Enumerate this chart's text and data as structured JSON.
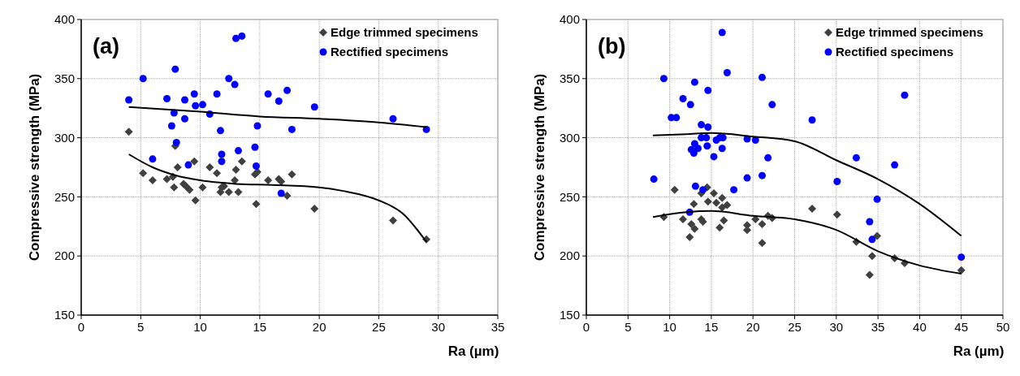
{
  "chart_data": [
    {
      "type": "scatter",
      "xlabel": "Ra (µm)",
      "ylabel": "Compressive strength (MPa)",
      "annotations": [
        "(a)"
      ],
      "xlim": [
        0,
        35
      ],
      "xticks": [
        0,
        5,
        10,
        15,
        20,
        25,
        30,
        35
      ],
      "ylim": [
        150,
        400
      ],
      "yticks": [
        150,
        200,
        250,
        300,
        350,
        400
      ],
      "grid": true,
      "legend": "top right",
      "series": [
        {
          "name": "Edge trimmed specimens",
          "color": "#404040",
          "marker": "diamond",
          "x": [
            4.0,
            5.2,
            6.0,
            7.2,
            7.7,
            7.8,
            7.9,
            8.1,
            8.6,
            8.8,
            9.1,
            9.6,
            9.5,
            10.2,
            10.8,
            11.4,
            12.0,
            11.8,
            11.7,
            12.4,
            13.0,
            12.9,
            13.2,
            13.5,
            14.6,
            14.8,
            14.7,
            15.7,
            16.6,
            16.8,
            17.3,
            17.7,
            19.6,
            26.2,
            29.0
          ],
          "values": [
            305,
            270,
            264,
            265,
            267,
            258,
            293,
            275,
            261,
            259,
            256,
            247,
            280,
            258,
            275,
            270,
            259,
            258,
            254,
            254,
            273,
            264,
            254,
            280,
            269,
            271,
            244,
            264,
            265,
            263,
            251,
            269,
            240,
            230,
            214
          ]
        },
        {
          "name": "Rectified specimens",
          "color": "#0000ff",
          "marker": "circle",
          "x": [
            4.0,
            5.2,
            7.9,
            7.2,
            8.7,
            9.5,
            7.8,
            9.6,
            10.2,
            10.8,
            11.4,
            12.4,
            12.9,
            13.0,
            13.5,
            8.7,
            7.6,
            11.7,
            8.0,
            6.0,
            9.0,
            11.8,
            11.8,
            13.2,
            14.6,
            14.7,
            14.8,
            15.7,
            16.6,
            17.3,
            17.7,
            16.8,
            19.6,
            26.2,
            29.0
          ],
          "values": [
            332,
            350,
            358,
            333,
            332,
            337,
            321,
            327,
            328,
            320,
            337,
            350,
            345,
            384,
            386,
            316,
            310,
            306,
            296,
            282,
            277,
            286,
            280,
            289,
            292,
            276,
            310,
            337,
            331,
            340,
            307,
            253,
            326,
            316,
            307
          ]
        },
        {
          "type": "line",
          "color": "#000000",
          "marker": "none",
          "x": [
            4,
            10,
            15,
            20,
            25,
            29
          ],
          "values": [
            326,
            322,
            318,
            316,
            313,
            309
          ]
        },
        {
          "type": "line",
          "color": "#000000",
          "marker": "none",
          "x": [
            4,
            6,
            8,
            10,
            13,
            16,
            20,
            22,
            25,
            27,
            29
          ],
          "values": [
            286,
            275,
            268,
            264,
            261,
            260,
            258,
            255,
            247,
            236,
            212
          ]
        }
      ]
    },
    {
      "type": "scatter",
      "xlabel": "Ra (µm)",
      "ylabel": "Compressive strength (MPa)",
      "annotations": [
        "(b)"
      ],
      "xlim": [
        0,
        50
      ],
      "xticks": [
        0,
        5,
        10,
        15,
        20,
        25,
        30,
        35,
        40,
        45,
        50
      ],
      "ylim": [
        150,
        400
      ],
      "yticks": [
        150,
        200,
        250,
        300,
        350,
        400
      ],
      "grid": true,
      "legend": "top right",
      "series": [
        {
          "name": "Edge trimmed specimens",
          "color": "#404040",
          "marker": "diamond",
          "x": [
            9.3,
            10.6,
            11.6,
            12.4,
            12.6,
            13.0,
            12.9,
            13.8,
            13.8,
            14.0,
            14.5,
            14.6,
            15.3,
            15.6,
            16.0,
            16.3,
            16.3,
            16.5,
            16.9,
            19.3,
            19.3,
            20.3,
            21.1,
            21.1,
            21.8,
            22.3,
            27.1,
            30.1,
            32.4,
            34.9,
            34.3,
            34.0,
            37.0,
            38.2,
            45.0
          ],
          "values": [
            233,
            256,
            231,
            216,
            227,
            223,
            244,
            253,
            231,
            229,
            258,
            246,
            253,
            245,
            224,
            249,
            241,
            230,
            243,
            226,
            222,
            231,
            227,
            211,
            234,
            232,
            240,
            235,
            212,
            217,
            200,
            184,
            198,
            194,
            188
          ]
        },
        {
          "name": "Rectified specimens",
          "color": "#0000ff",
          "marker": "circle",
          "x": [
            9.3,
            13.0,
            11.6,
            12.5,
            10.2,
            10.8,
            14.6,
            16.3,
            16.9,
            21.1,
            22.3,
            13.8,
            14.6,
            13.8,
            14.4,
            13.0,
            13.4,
            12.6,
            12.9,
            14.5,
            15.3,
            15.6,
            16.0,
            16.4,
            16.3,
            19.3,
            20.3,
            21.8,
            21.1,
            19.3,
            8.1,
            13.1,
            14.0,
            17.7,
            12.4,
            27.1,
            38.2,
            32.4,
            37.0,
            30.1,
            34.9,
            34.0,
            34.3,
            45.0
          ],
          "values": [
            350,
            347,
            333,
            328,
            317,
            317,
            340,
            389,
            355,
            351,
            328,
            311,
            309,
            300,
            300,
            295,
            291,
            290,
            287,
            293,
            284,
            298,
            300,
            300,
            291,
            299,
            298,
            283,
            268,
            266,
            265,
            259,
            256,
            256,
            237,
            315,
            336,
            283,
            277,
            263,
            248,
            229,
            214,
            199
          ]
        },
        {
          "type": "line",
          "color": "#000000",
          "marker": "none",
          "x": [
            8,
            12,
            15,
            20,
            25,
            30,
            35,
            40,
            45
          ],
          "values": [
            302,
            303,
            304,
            301,
            297,
            281,
            265,
            244,
            217
          ]
        },
        {
          "type": "line",
          "color": "#000000",
          "marker": "none",
          "x": [
            8,
            12,
            15,
            20,
            25,
            30,
            35,
            40,
            45
          ],
          "values": [
            233,
            237,
            238,
            234,
            231,
            222,
            204,
            192,
            185
          ]
        }
      ]
    }
  ]
}
